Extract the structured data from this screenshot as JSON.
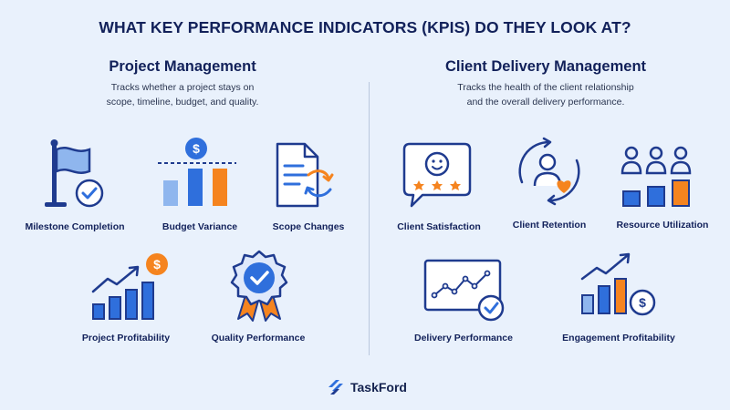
{
  "title": "WHAT KEY PERFORMANCE INDICATORS (KPIS) DO THEY LOOK AT?",
  "colors": {
    "navy": "#1f3b8f",
    "blue": "#2f6fdc",
    "lightblue": "#8fb6ee",
    "orange": "#f5841f",
    "background": "#e9f1fc"
  },
  "project_management": {
    "heading": "Project Management",
    "description_line1": "Tracks whether a project stays on",
    "description_line2": "scope, timeline, budget, and quality.",
    "kpis": [
      {
        "label": "Milestone Completion",
        "icon": "flag-check-icon"
      },
      {
        "label": "Budget Variance",
        "icon": "bar-chart-dollar-icon"
      },
      {
        "label": "Scope Changes",
        "icon": "document-arrows-icon"
      },
      {
        "label": "Project Profitability",
        "icon": "growth-chart-dollar-icon"
      },
      {
        "label": "Quality Performance",
        "icon": "badge-check-icon"
      }
    ]
  },
  "client_delivery": {
    "heading": "Client Delivery Management",
    "description_line1": "Tracks the health of the client relationship",
    "description_line2": "and the overall delivery performance.",
    "kpis": [
      {
        "label": "Client Satisfaction",
        "icon": "smiley-stars-icon"
      },
      {
        "label": "Client Retention",
        "icon": "user-cycle-heart-icon"
      },
      {
        "label": "Resource Utilization",
        "icon": "people-bars-icon"
      },
      {
        "label": "Delivery Performance",
        "icon": "screen-linechart-check-icon"
      },
      {
        "label": "Engagement Profitability",
        "icon": "bars-trend-dollar-icon"
      }
    ]
  },
  "footer": {
    "brand": "TaskFord",
    "logo_icon": "taskford-logo-icon"
  }
}
